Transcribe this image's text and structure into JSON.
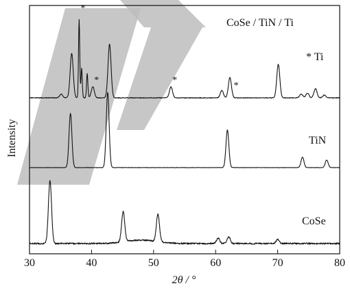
{
  "chart_data": {
    "type": "line",
    "xlabel": "2θ / °",
    "ylabel": "Intensity",
    "xlim": [
      30,
      80
    ],
    "xticks": [
      30,
      40,
      50,
      60,
      70,
      80
    ],
    "y_axis_ticks": false,
    "grid": false,
    "series": [
      {
        "name": "CoSe / TiN / Ti",
        "baseline": 0.0,
        "peaks": [
          {
            "x": 35.1,
            "h": 0.04
          },
          {
            "x": 36.8,
            "h": 0.48
          },
          {
            "x": 38.0,
            "h": 0.85
          },
          {
            "x": 38.4,
            "h": 0.32
          },
          {
            "x": 39.3,
            "h": 0.26
          },
          {
            "x": 40.2,
            "h": 0.12
          },
          {
            "x": 42.9,
            "h": 0.58
          },
          {
            "x": 52.8,
            "h": 0.12
          },
          {
            "x": 61.0,
            "h": 0.08
          },
          {
            "x": 62.3,
            "h": 0.22
          },
          {
            "x": 70.1,
            "h": 0.36
          },
          {
            "x": 73.8,
            "h": 0.04
          },
          {
            "x": 74.8,
            "h": 0.05
          },
          {
            "x": 76.1,
            "h": 0.1
          },
          {
            "x": 77.5,
            "h": 0.03
          }
        ]
      },
      {
        "name": "TiN",
        "baseline": 0.0,
        "peaks": [
          {
            "x": 36.6,
            "h": 0.72
          },
          {
            "x": 42.6,
            "h": 1.0
          },
          {
            "x": 61.9,
            "h": 0.5
          },
          {
            "x": 74.0,
            "h": 0.14
          },
          {
            "x": 77.9,
            "h": 0.1
          }
        ]
      },
      {
        "name": "CoSe",
        "baseline": 0.0,
        "peaks": [
          {
            "x": 33.3,
            "h": 0.92
          },
          {
            "x": 45.1,
            "h": 0.44
          },
          {
            "x": 50.7,
            "h": 0.4
          },
          {
            "x": 60.4,
            "h": 0.08
          },
          {
            "x": 62.1,
            "h": 0.1
          },
          {
            "x": 70.0,
            "h": 0.06
          }
        ]
      }
    ],
    "annotations": [
      {
        "text": "*",
        "x": 38.0
      },
      {
        "text": "*",
        "x": 40.2
      },
      {
        "text": "*",
        "x": 52.8
      },
      {
        "text": "*",
        "x": 62.7
      }
    ],
    "legend_note": "* Ti"
  },
  "labels": {
    "coset_title": "CoSe / TiN / Ti",
    "ti_note": "* Ti",
    "tin": "TiN",
    "cose": "CoSe"
  }
}
